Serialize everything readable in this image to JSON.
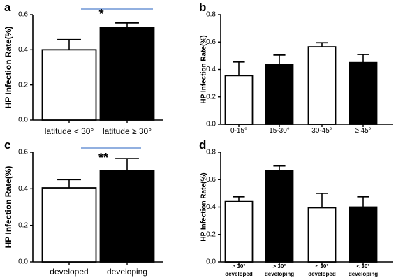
{
  "chart_data": [
    {
      "panel": "a",
      "type": "bar",
      "ylabel": "HP Infection Rate(%)",
      "ylim": [
        0,
        0.6
      ],
      "yticks": [
        "0.0",
        "0.2",
        "0.4",
        "0.6"
      ],
      "categories": [
        "latitude < 30°",
        "latitude ≥  30°"
      ],
      "values": [
        0.4,
        0.525
      ],
      "errors": [
        0.058,
        0.028
      ],
      "bar_fills": [
        "#ffffff",
        "#000000"
      ],
      "significance": "*"
    },
    {
      "panel": "b",
      "type": "bar",
      "ylabel": "HP Infection Rate(%)",
      "ylim": [
        0,
        0.8
      ],
      "yticks": [
        "0.0",
        "0.2",
        "0.4",
        "0.6",
        "0.8"
      ],
      "categories": [
        "0-15°",
        "15-30°",
        "30-45°",
        "≥ 45°"
      ],
      "values": [
        0.355,
        0.435,
        0.565,
        0.45
      ],
      "errors": [
        0.1,
        0.07,
        0.03,
        0.06
      ],
      "bar_fills": [
        "#ffffff",
        "#000000",
        "#ffffff",
        "#000000"
      ]
    },
    {
      "panel": "c",
      "type": "bar",
      "ylabel": "HP Infection Rate(%)",
      "ylim": [
        0,
        0.6
      ],
      "yticks": [
        "0.0",
        "0.2",
        "0.4",
        "0.6"
      ],
      "categories": [
        "developed",
        "developing"
      ],
      "values": [
        0.405,
        0.5
      ],
      "errors": [
        0.045,
        0.065
      ],
      "bar_fills": [
        "#ffffff",
        "#000000"
      ],
      "significance": "**"
    },
    {
      "panel": "d",
      "type": "bar",
      "ylabel": "HP Infection Rate(%)",
      "ylim": [
        0,
        0.8
      ],
      "yticks": [
        "0.0",
        "0.2",
        "0.4",
        "0.6",
        "0.8"
      ],
      "categories": [
        [
          "> 30°",
          "developed"
        ],
        [
          "> 30°",
          "developing"
        ],
        [
          "< 30°",
          "developed"
        ],
        [
          "< 30°",
          "developing"
        ]
      ],
      "values": [
        0.44,
        0.665,
        0.395,
        0.4
      ],
      "errors": [
        0.035,
        0.035,
        0.105,
        0.075
      ],
      "bar_fills": [
        "#ffffff",
        "#000000",
        "#ffffff",
        "#000000"
      ]
    }
  ],
  "colors": {
    "axis": "#000000",
    "significance_line": "#6f95d6"
  }
}
